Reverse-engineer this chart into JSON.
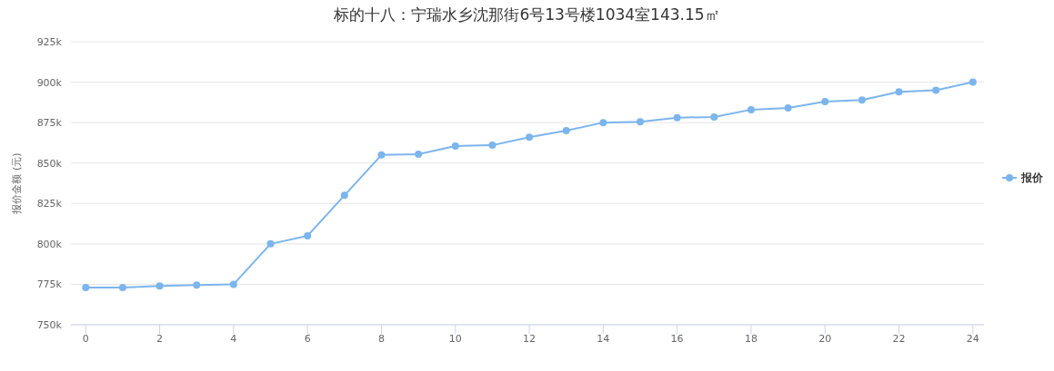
{
  "chart_data": {
    "type": "line",
    "title": "标的十八：宁瑞水乡沈那街6号13号楼1034室143.15㎡",
    "ylabel": "报价金额 (元)",
    "x": [
      0,
      1,
      2,
      3,
      4,
      5,
      6,
      7,
      8,
      9,
      10,
      11,
      12,
      13,
      14,
      15,
      16,
      17,
      18,
      19,
      20,
      21,
      22,
      23,
      24
    ],
    "series": [
      {
        "name": "报价",
        "color": "#7cb5ec",
        "values": [
          773000,
          773000,
          774000,
          774500,
          775000,
          800000,
          805000,
          830000,
          855000,
          855500,
          860500,
          861000,
          866000,
          870000,
          875000,
          875500,
          878000,
          878500,
          883000,
          884000,
          888000,
          889000,
          894000,
          895000,
          900000
        ]
      }
    ],
    "xlim": [
      -0.4,
      24.3
    ],
    "xticks": [
      0,
      2,
      4,
      6,
      8,
      10,
      12,
      14,
      16,
      18,
      20,
      22,
      24
    ],
    "ylim": [
      750000,
      925000
    ],
    "yticks": [
      {
        "value": 750000,
        "label": "750k"
      },
      {
        "value": 775000,
        "label": "775k"
      },
      {
        "value": 800000,
        "label": "800k"
      },
      {
        "value": 825000,
        "label": "825k"
      },
      {
        "value": 850000,
        "label": "850k"
      },
      {
        "value": 875000,
        "label": "875k"
      },
      {
        "value": 900000,
        "label": "900k"
      },
      {
        "value": 925000,
        "label": "925k"
      }
    ],
    "grid": "y",
    "legend": "right",
    "marker": "circle",
    "line_style": "solid"
  }
}
